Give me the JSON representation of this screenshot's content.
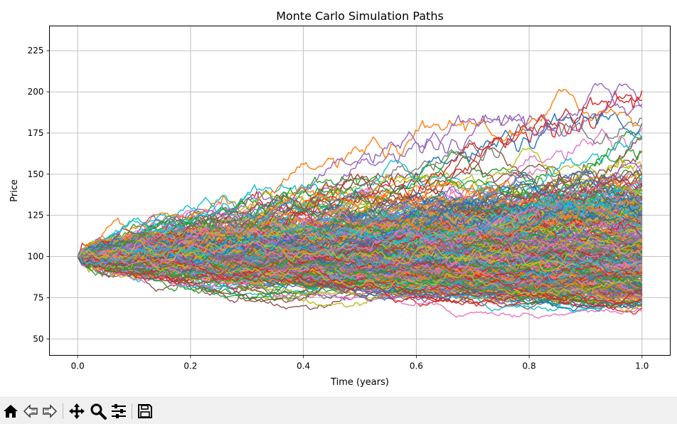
{
  "chart_data": {
    "type": "line",
    "title": "Monte Carlo Simulation Paths",
    "xlabel": "Time (years)",
    "ylabel": "Price",
    "xlim": [
      -0.05,
      1.05
    ],
    "ylim": [
      40,
      240
    ],
    "xticks": [
      0.0,
      0.2,
      0.4,
      0.6,
      0.8,
      1.0
    ],
    "xtick_labels": [
      "0.0",
      "0.2",
      "0.4",
      "0.6",
      "0.8",
      "1.0"
    ],
    "yticks": [
      50,
      75,
      100,
      125,
      150,
      175,
      200,
      225
    ],
    "ytick_labels": [
      "50",
      "75",
      "100",
      "125",
      "150",
      "175",
      "200",
      "225"
    ],
    "grid": true,
    "start_value": 100,
    "end_range": [
      50,
      220
    ],
    "colors": [
      "#1f77b4",
      "#ff7f0e",
      "#2ca02c",
      "#d62728",
      "#9467bd",
      "#8c564b",
      "#e377c2",
      "#7f7f7f",
      "#bcbd22",
      "#17becf"
    ]
  },
  "toolbar": {
    "items": [
      "home-icon",
      "back-icon",
      "forward-icon",
      "pan-icon",
      "zoom-icon",
      "configure-icon",
      "save-icon"
    ]
  }
}
